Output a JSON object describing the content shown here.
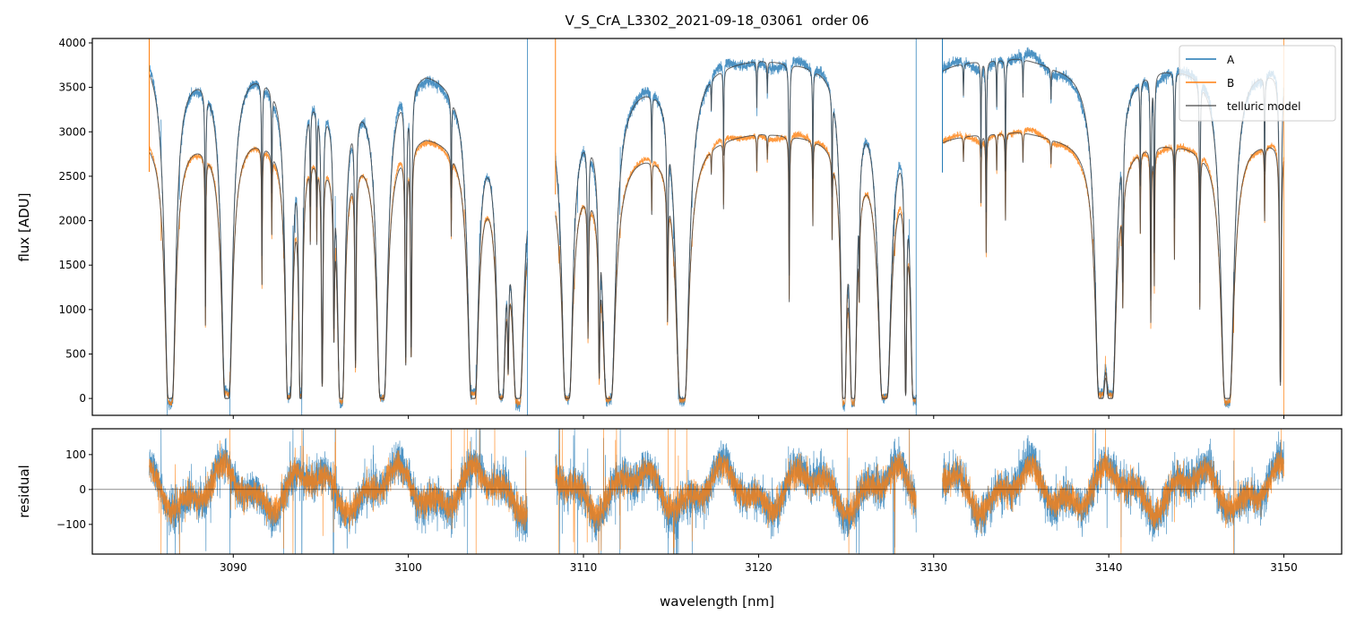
{
  "chart_data": [
    {
      "type": "line",
      "panel": "flux",
      "title": "V_S_CrA_L3302_2021-09-18_03061  order 06",
      "xlabel": "",
      "ylabel": "flux [ADU]",
      "xlim": [
        3081.95,
        3153.3
      ],
      "ylim": [
        -190,
        4050
      ],
      "xticks": [
        3090,
        3100,
        3110,
        3120,
        3130,
        3140,
        3150
      ],
      "yticks": [
        0,
        500,
        1000,
        1500,
        2000,
        2500,
        3000,
        3500,
        4000
      ],
      "grid": false,
      "legend": {
        "placement": "top-right",
        "entries": [
          "A",
          "B",
          "telluric model"
        ]
      },
      "colors": {
        "A": "#1f77b4",
        "B": "#ff7f0e",
        "telluric model": "#404040"
      },
      "segments_nm": [
        [
          3085.2,
          3106.8
        ],
        [
          3108.4,
          3129.0
        ],
        [
          3130.5,
          3150.0
        ]
      ],
      "continuum_nm_A_B": [
        [
          [
            3085.2,
            3950,
            3000
          ],
          [
            3087.5,
            3780,
            2990
          ],
          [
            3091,
            3800,
            3020
          ],
          [
            3095,
            3560,
            2860
          ],
          [
            3098,
            3570,
            2880
          ],
          [
            3101,
            3790,
            3050
          ],
          [
            3103,
            3660,
            2960
          ],
          [
            3105,
            3260,
            2660
          ],
          [
            3106.8,
            2850,
            2380
          ]
        ],
        [
          [
            3108.4,
            3500,
            2700
          ],
          [
            3110,
            3460,
            2700
          ],
          [
            3113,
            3650,
            2850
          ],
          [
            3117,
            3810,
            2960
          ],
          [
            3120,
            3870,
            3030
          ],
          [
            3124,
            3800,
            2980
          ],
          [
            3127,
            3600,
            2900
          ],
          [
            3129,
            3300,
            2750
          ]
        ],
        [
          [
            3130.5,
            3830,
            2990
          ],
          [
            3135,
            3880,
            3040
          ],
          [
            3137,
            3800,
            2980
          ],
          [
            3141,
            3800,
            2950
          ],
          [
            3145,
            3780,
            2900
          ],
          [
            3148,
            3800,
            2960
          ],
          [
            3150,
            3700,
            2900
          ]
        ]
      ],
      "telluric_lines_center_tau_width": [
        [
          3086.4,
          40,
          0.05
        ],
        [
          3088.41,
          1.2,
          0.02
        ],
        [
          3089.64,
          40,
          0.05
        ],
        [
          3091.64,
          0.8,
          0.02
        ],
        [
          3092.2,
          0.4,
          0.02
        ],
        [
          3093.18,
          30,
          0.04
        ],
        [
          3093.85,
          15,
          0.03
        ],
        [
          3094.4,
          0.4,
          0.02
        ],
        [
          3094.77,
          0.4,
          0.02
        ],
        [
          3095.08,
          3,
          0.03
        ],
        [
          3095.75,
          1.2,
          0.03
        ],
        [
          3096.16,
          30,
          0.04
        ],
        [
          3096.98,
          2,
          0.03
        ],
        [
          3098.5,
          40,
          0.05
        ],
        [
          3099.85,
          2,
          0.03
        ],
        [
          3100.16,
          1.8,
          0.03
        ],
        [
          3102.45,
          0.4,
          0.02
        ],
        [
          3103.7,
          40,
          0.05
        ],
        [
          3105.3,
          40,
          0.04
        ],
        [
          3105.7,
          1.5,
          0.03
        ],
        [
          3106.26,
          40,
          0.05
        ],
        [
          3109.08,
          40,
          0.05
        ],
        [
          3110.26,
          1.2,
          0.03
        ],
        [
          3110.9,
          2,
          0.03
        ],
        [
          3111.45,
          40,
          0.06
        ],
        [
          3113.9,
          0.25,
          0.02
        ],
        [
          3114.8,
          1,
          0.03
        ],
        [
          3115.65,
          40,
          0.06
        ],
        [
          3117.3,
          0.1,
          0.02
        ],
        [
          3118.0,
          0.3,
          0.02
        ],
        [
          3119.9,
          0.15,
          0.02
        ],
        [
          3120.5,
          0.1,
          0.02
        ],
        [
          3121.75,
          1,
          0.02
        ],
        [
          3123.1,
          0.4,
          0.02
        ],
        [
          3124.2,
          0.4,
          0.02
        ],
        [
          3124.87,
          30,
          0.03
        ],
        [
          3125.4,
          30,
          0.04
        ],
        [
          3125.75,
          0.5,
          0.02
        ],
        [
          3127.2,
          40,
          0.06
        ],
        [
          3128.4,
          4,
          0.03
        ],
        [
          3128.9,
          30,
          0.04
        ],
        [
          3131.7,
          0.1,
          0.02
        ],
        [
          3132.7,
          0.3,
          0.02
        ],
        [
          3133.0,
          0.6,
          0.02
        ],
        [
          3133.6,
          0.15,
          0.02
        ],
        [
          3134.1,
          0.4,
          0.02
        ],
        [
          3135.1,
          0.12,
          0.02
        ],
        [
          3136.7,
          0.1,
          0.02
        ],
        [
          3139.55,
          40,
          0.05
        ],
        [
          3140.1,
          40,
          0.05
        ],
        [
          3140.8,
          0.8,
          0.03
        ],
        [
          3141.8,
          0.4,
          0.02
        ],
        [
          3142.4,
          1.2,
          0.02
        ],
        [
          3142.6,
          0.8,
          0.02
        ],
        [
          3143.75,
          0.6,
          0.02
        ],
        [
          3145.2,
          1.0,
          0.02
        ],
        [
          3146.77,
          40,
          0.06
        ],
        [
          3148.9,
          0.35,
          0.02
        ],
        [
          3149.8,
          3,
          0.03
        ]
      ]
    },
    {
      "type": "line",
      "panel": "residual",
      "xlabel": "wavelength [nm]",
      "ylabel": "residual",
      "xlim": [
        3081.95,
        3153.3
      ],
      "ylim": [
        -185,
        174
      ],
      "xticks": [
        3090,
        3100,
        3110,
        3120,
        3130,
        3140,
        3150
      ],
      "yticks": [
        -100,
        0,
        100
      ],
      "ytick_labels": [
        "−100",
        "0",
        "100"
      ],
      "reference_line": 0,
      "series": [
        "A",
        "B"
      ]
    }
  ]
}
